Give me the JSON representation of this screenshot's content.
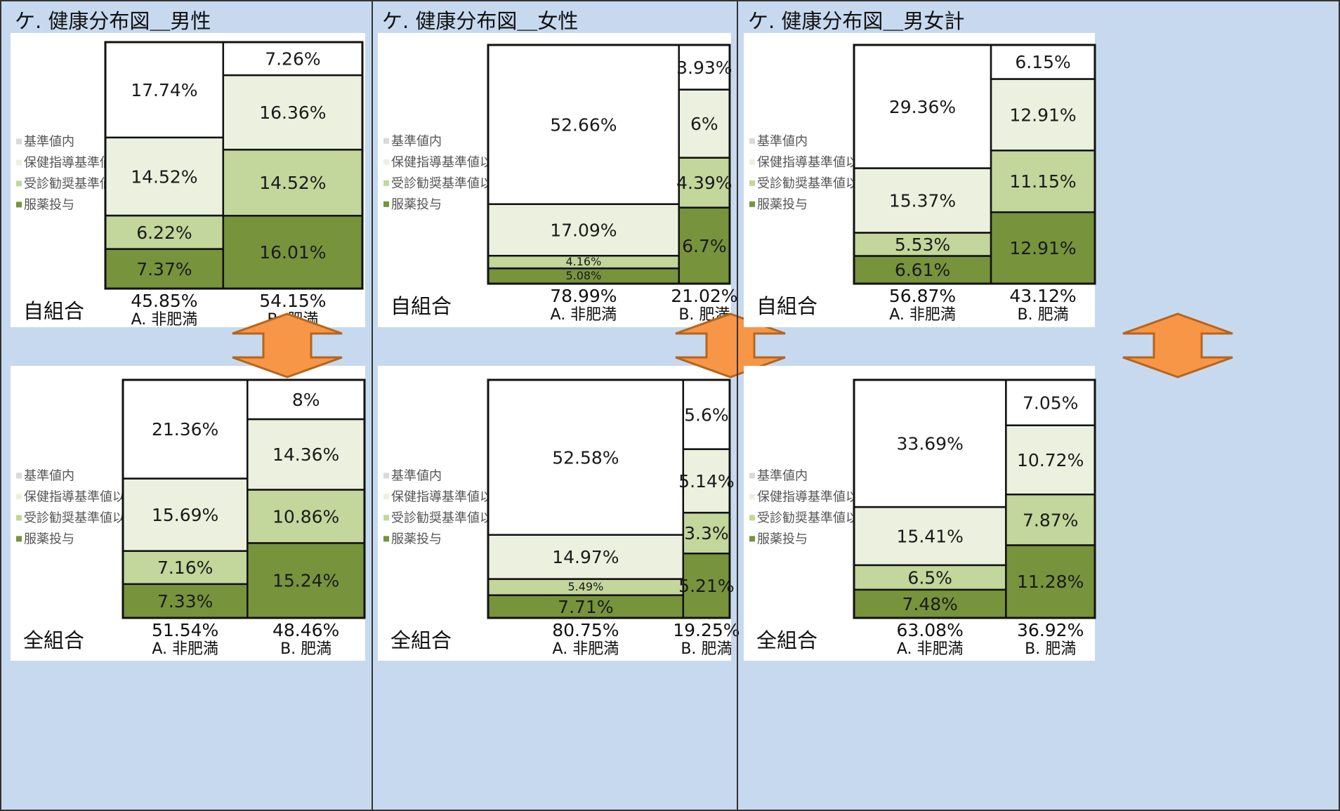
{
  "colors": {
    "panel_bg": "#c7d9ef",
    "chart_bg": "#ffffff",
    "border": "#111111",
    "divider": "#333333",
    "segment": {
      "基準値内": "#ffffff",
      "保健指導基準値以上": "#ebf1de",
      "受診勧奨基準値以上": "#c3d69b",
      "服薬投与": "#77933c"
    },
    "arrow_fill": "#f79646",
    "arrow_stroke": "#b5651d"
  },
  "icons": {
    "swap": "double-headed-vertical-arrow-icon"
  },
  "legend_labels": [
    "基準値内",
    "保健指導基準値以上",
    "受診勧奨基準値以上",
    "服薬投与"
  ],
  "chart_data": [
    {
      "type": "mosaic",
      "title": "ケ. 健康分布図＿男性",
      "charts": [
        {
          "row_label": "自組合",
          "columns": [
            {
              "category": "A. 非肥満",
              "width_pct": 45.85,
              "width_label": "45.85%",
              "segments": [
                {
                  "name": "服薬投与",
                  "value": 7.37,
                  "label": "7.37%"
                },
                {
                  "name": "受診勧奨基準値以上",
                  "value": 6.22,
                  "label": "6.22%"
                },
                {
                  "name": "保健指導基準値以上",
                  "value": 14.52,
                  "label": "14.52%"
                },
                {
                  "name": "基準値内",
                  "value": 17.74,
                  "label": "17.74%"
                }
              ]
            },
            {
              "category": "B. 肥満",
              "width_pct": 54.15,
              "width_label": "54.15%",
              "segments": [
                {
                  "name": "服薬投与",
                  "value": 16.01,
                  "label": "16.01%"
                },
                {
                  "name": "受診勧奨基準値以上",
                  "value": 14.52,
                  "label": "14.52%"
                },
                {
                  "name": "保健指導基準値以上",
                  "value": 16.36,
                  "label": "16.36%"
                },
                {
                  "name": "基準値内",
                  "value": 7.26,
                  "label": "7.26%"
                }
              ]
            }
          ]
        },
        {
          "row_label": "全組合",
          "columns": [
            {
              "category": "A. 非肥満",
              "width_pct": 51.54,
              "width_label": "51.54%",
              "segments": [
                {
                  "name": "服薬投与",
                  "value": 7.33,
                  "label": "7.33%"
                },
                {
                  "name": "受診勧奨基準値以上",
                  "value": 7.16,
                  "label": "7.16%"
                },
                {
                  "name": "保健指導基準値以上",
                  "value": 15.69,
                  "label": "15.69%"
                },
                {
                  "name": "基準値内",
                  "value": 21.36,
                  "label": "21.36%"
                }
              ]
            },
            {
              "category": "B. 肥満",
              "width_pct": 48.46,
              "width_label": "48.46%",
              "segments": [
                {
                  "name": "服薬投与",
                  "value": 15.24,
                  "label": "15.24%"
                },
                {
                  "name": "受診勧奨基準値以上",
                  "value": 10.86,
                  "label": "10.86%"
                },
                {
                  "name": "保健指導基準値以上",
                  "value": 14.36,
                  "label": "14.36%"
                },
                {
                  "name": "基準値内",
                  "value": 8,
                  "label": "8%"
                }
              ]
            }
          ]
        }
      ]
    },
    {
      "type": "mosaic",
      "title": "ケ. 健康分布図＿女性",
      "charts": [
        {
          "row_label": "自組合",
          "columns": [
            {
              "category": "A. 非肥満",
              "width_pct": 78.99,
              "width_label": "78.99%",
              "segments": [
                {
                  "name": "服薬投与",
                  "value": 5.08,
                  "label": "5.08%"
                },
                {
                  "name": "受診勧奨基準値以上",
                  "value": 4.16,
                  "label": "4.16%"
                },
                {
                  "name": "保健指導基準値以上",
                  "value": 17.09,
                  "label": "17.09%"
                },
                {
                  "name": "基準値内",
                  "value": 52.66,
                  "label": "52.66%"
                }
              ]
            },
            {
              "category": "B. 肥満",
              "width_pct": 21.02,
              "width_label": "21.02%",
              "segments": [
                {
                  "name": "服薬投与",
                  "value": 6.7,
                  "label": "6.7%"
                },
                {
                  "name": "受診勧奨基準値以上",
                  "value": 4.39,
                  "label": "4.39%"
                },
                {
                  "name": "保健指導基準値以上",
                  "value": 6,
                  "label": "6%"
                },
                {
                  "name": "基準値内",
                  "value": 3.93,
                  "label": "3.93%"
                }
              ]
            }
          ]
        },
        {
          "row_label": "全組合",
          "columns": [
            {
              "category": "A. 非肥満",
              "width_pct": 80.75,
              "width_label": "80.75%",
              "segments": [
                {
                  "name": "服薬投与",
                  "value": 7.71,
                  "label": "7.71%"
                },
                {
                  "name": "受診勧奨基準値以上",
                  "value": 5.49,
                  "label": "5.49%"
                },
                {
                  "name": "保健指導基準値以上",
                  "value": 14.97,
                  "label": "14.97%"
                },
                {
                  "name": "基準値内",
                  "value": 52.58,
                  "label": "52.58%"
                }
              ]
            },
            {
              "category": "B. 肥満",
              "width_pct": 19.25,
              "width_label": "19.25%",
              "segments": [
                {
                  "name": "服薬投与",
                  "value": 5.21,
                  "label": "5.21%"
                },
                {
                  "name": "受診勧奨基準値以上",
                  "value": 3.3,
                  "label": "3.3%"
                },
                {
                  "name": "保健指導基準値以上",
                  "value": 5.14,
                  "label": "5.14%"
                },
                {
                  "name": "基準値内",
                  "value": 5.6,
                  "label": "5.6%"
                }
              ]
            }
          ]
        }
      ]
    },
    {
      "type": "mosaic",
      "title": "ケ. 健康分布図＿男女計",
      "charts": [
        {
          "row_label": "自組合",
          "columns": [
            {
              "category": "A. 非肥満",
              "width_pct": 56.87,
              "width_label": "56.87%",
              "segments": [
                {
                  "name": "服薬投与",
                  "value": 6.61,
                  "label": "6.61%"
                },
                {
                  "name": "受診勧奨基準値以上",
                  "value": 5.53,
                  "label": "5.53%"
                },
                {
                  "name": "保健指導基準値以上",
                  "value": 15.37,
                  "label": "15.37%"
                },
                {
                  "name": "基準値内",
                  "value": 29.36,
                  "label": "29.36%"
                }
              ]
            },
            {
              "category": "B. 肥満",
              "width_pct": 43.12,
              "width_label": "43.12%",
              "segments": [
                {
                  "name": "服薬投与",
                  "value": 12.91,
                  "label": "12.91%"
                },
                {
                  "name": "受診勧奨基準値以上",
                  "value": 11.15,
                  "label": "11.15%"
                },
                {
                  "name": "保健指導基準値以上",
                  "value": 12.91,
                  "label": "12.91%"
                },
                {
                  "name": "基準値内",
                  "value": 6.15,
                  "label": "6.15%"
                }
              ]
            }
          ]
        },
        {
          "row_label": "全組合",
          "columns": [
            {
              "category": "A. 非肥満",
              "width_pct": 63.08,
              "width_label": "63.08%",
              "segments": [
                {
                  "name": "服薬投与",
                  "value": 7.48,
                  "label": "7.48%"
                },
                {
                  "name": "受診勧奨基準値以上",
                  "value": 6.5,
                  "label": "6.5%"
                },
                {
                  "name": "保健指導基準値以上",
                  "value": 15.41,
                  "label": "15.41%"
                },
                {
                  "name": "基準値内",
                  "value": 33.69,
                  "label": "33.69%"
                }
              ]
            },
            {
              "category": "B. 肥満",
              "width_pct": 36.92,
              "width_label": "36.92%",
              "segments": [
                {
                  "name": "服薬投与",
                  "value": 11.28,
                  "label": "11.28%"
                },
                {
                  "name": "受診勧奨基準値以上",
                  "value": 7.87,
                  "label": "7.87%"
                },
                {
                  "name": "保健指導基準値以上",
                  "value": 10.72,
                  "label": "10.72%"
                },
                {
                  "name": "基準値内",
                  "value": 7.05,
                  "label": "7.05%"
                }
              ]
            }
          ]
        }
      ]
    }
  ]
}
